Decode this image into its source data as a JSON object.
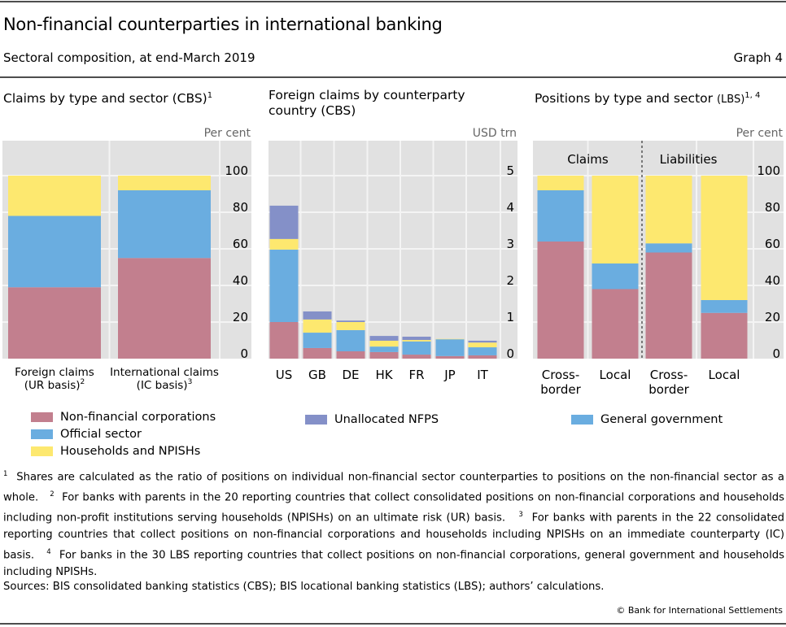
{
  "header": {
    "title": "Non-financial counterparties in international banking",
    "subtitle": "Sectoral composition, at end-March 2019",
    "graph_number": "Graph 4"
  },
  "colors": {
    "nfc": "#c27f8e",
    "official": "#6aade0",
    "households": "#fde86f",
    "unallocated": "#8490c8",
    "plot_bg": "#e1e1e1",
    "grid": "#f4f4f4"
  },
  "chart_data": [
    {
      "id": "panel1",
      "type": "bar",
      "stacked": true,
      "title": "Claims by type and sector (CBS)",
      "title_sup": "1",
      "unit_label": "Per cent",
      "categories": [
        "Foreign claims (UR basis)",
        "International claims (IC basis)"
      ],
      "category_lines": [
        [
          "Foreign claims",
          "(UR basis)",
          "2"
        ],
        [
          "International claims",
          "(IC basis)",
          "3"
        ]
      ],
      "series": [
        {
          "name": "Non-financial corporations",
          "key": "nfc",
          "values": [
            39,
            55
          ]
        },
        {
          "name": "Official sector",
          "key": "official",
          "values": [
            39,
            37
          ]
        },
        {
          "name": "Households and NPISHs",
          "key": "households",
          "values": [
            22,
            8
          ]
        }
      ],
      "ylim": [
        0,
        120
      ],
      "yticks": [
        0,
        20,
        40,
        60,
        80,
        100
      ],
      "grid": true,
      "axis_side": "right"
    },
    {
      "id": "panel2",
      "type": "bar",
      "stacked": true,
      "title": "Foreign claims by counterparty country (CBS)",
      "title_lines": [
        "Foreign claims by counterparty",
        "country (CBS)"
      ],
      "unit_label": "USD trn",
      "categories": [
        "US",
        "GB",
        "DE",
        "HK",
        "FR",
        "JP",
        "IT"
      ],
      "series": [
        {
          "name": "Non-financial corporations",
          "key": "nfc",
          "values": [
            1.0,
            0.29,
            0.2,
            0.18,
            0.11,
            0.07,
            0.09
          ]
        },
        {
          "name": "Official sector",
          "key": "official",
          "values": [
            1.98,
            0.42,
            0.58,
            0.15,
            0.36,
            0.46,
            0.22
          ]
        },
        {
          "name": "Households and NPISHs",
          "key": "households",
          "values": [
            0.29,
            0.36,
            0.22,
            0.16,
            0.04,
            0.01,
            0.13
          ]
        },
        {
          "name": "Unallocated NFPS",
          "key": "unallocated",
          "values": [
            0.91,
            0.22,
            0.04,
            0.13,
            0.09,
            0.0,
            0.05
          ]
        }
      ],
      "ylim": [
        0,
        6
      ],
      "yticks": [
        0,
        1,
        2,
        3,
        4,
        5
      ],
      "grid": true,
      "axis_side": "right"
    },
    {
      "id": "panel3",
      "type": "bar",
      "stacked": true,
      "title": "Positions by type and sector",
      "title_small": "(LBS)",
      "title_sup": "1, 4",
      "unit_label": "Per cent",
      "groups": [
        "Claims",
        "Liabilities"
      ],
      "categories": [
        "Cross-border (claims)",
        "Local (claims)",
        "Cross-border (liabilities)",
        "Local (liabilities)"
      ],
      "category_lines": [
        [
          "Cross-",
          "border"
        ],
        [
          "Local"
        ],
        [
          "Cross-",
          "border"
        ],
        [
          "Local"
        ]
      ],
      "series": [
        {
          "name": "Non-financial corporations",
          "key": "nfc",
          "values": [
            64,
            38,
            58,
            25
          ]
        },
        {
          "name": "General government",
          "key": "official",
          "values": [
            28,
            14,
            5,
            7
          ]
        },
        {
          "name": "Households and NPISHs",
          "key": "households",
          "values": [
            8,
            48,
            37,
            68
          ]
        }
      ],
      "ylim": [
        0,
        120
      ],
      "yticks": [
        0,
        20,
        40,
        60,
        80,
        100
      ],
      "grid": true,
      "axis_side": "right"
    }
  ],
  "legend": {
    "col1": [
      {
        "label": "Non-financial corporations",
        "key": "nfc"
      },
      {
        "label": "Official sector",
        "key": "official"
      },
      {
        "label": "Households and NPISHs",
        "key": "households"
      }
    ],
    "col2": [
      {
        "label": "Unallocated NFPS",
        "key": "unallocated"
      }
    ],
    "col3": [
      {
        "label": "General government",
        "key": "official"
      }
    ]
  },
  "notes": {
    "n1_sup": "1",
    "n1": "Shares are calculated as the ratio of positions on individual non-financial sector counterparties to positions on the non-financial sector as a whole.",
    "n2_sup": "2",
    "n2": "For banks with parents in the 20 reporting countries that collect consolidated positions on non-financial corporations and households including non-profit institutions serving households (NPISHs) on an ultimate risk (UR) basis.",
    "n3_sup": "3",
    "n3": "For banks with parents in the 22 consolidated reporting countries that collect positions on non-financial corporations and households including  NPISHs on an immediate counterparty (IC) basis.",
    "n4_sup": "4",
    "n4": "For banks in the 30 LBS reporting countries that collect positions on non-financial corporations, general government and households including NPISHs."
  },
  "sources": "Sources: BIS consolidated banking statistics (CBS); BIS locational banking statistics (LBS); authors’ calculations.",
  "copyright": "© Bank for International Settlements"
}
